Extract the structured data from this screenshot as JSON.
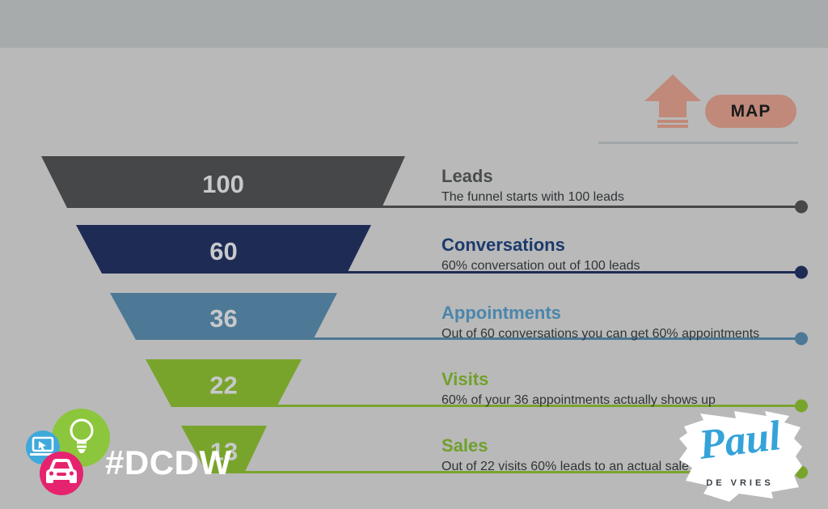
{
  "funnel": {
    "stages": [
      {
        "value": "100",
        "title": "Leads",
        "description": "The funnel starts with 100 leads",
        "color": "#454749",
        "title_color": "#4a4d4e",
        "line_color": "#454749"
      },
      {
        "value": "60",
        "title": "Conversations",
        "description": "60% conversation out of 100 leads",
        "color": "#1e2b55",
        "title_color": "#1d3a6d",
        "line_color": "#1e2b55"
      },
      {
        "value": "36",
        "title": "Appointments",
        "description": "Out of 60 conversations you can get 60% appointments",
        "color": "#4d7896",
        "title_color": "#4a86ac",
        "line_color": "#4d7896"
      },
      {
        "value": "22",
        "title": "Visits",
        "description": "60% of your 36 appointments actually shows up",
        "color": "#79a42c",
        "title_color": "#70a02b",
        "line_color": "#79a42c"
      },
      {
        "value": "13",
        "title": "Sales",
        "description": "Out of 22 visits 60% leads to an actual sale",
        "color": "#79a42c",
        "title_color": "#70a02b",
        "line_color": "#79a42c"
      }
    ],
    "number_color": "#c6c9cb",
    "description_color": "#303436"
  },
  "map_button": {
    "label": "MAP",
    "color": "#c0897a",
    "text_color": "#1a1a1a"
  },
  "arrow_icon": {
    "name": "up-arrow-icon",
    "color": "#c0897a"
  },
  "hashtag": {
    "label": "#DCDW",
    "color": "#ffffff"
  },
  "badges": {
    "lightbulb_circle_color": "#8cc63c",
    "laptop_circle_color": "#3fa9dc",
    "car_circle_color": "#e6236f",
    "icon_color": "#ffffff"
  },
  "logo": {
    "name": "Paul",
    "subtitle": "DE VRIES",
    "script_color": "#35a3d9",
    "subtitle_color": "#3a4045"
  },
  "chart_data": {
    "type": "funnel",
    "categories": [
      "Leads",
      "Conversations",
      "Appointments",
      "Visits",
      "Sales"
    ],
    "values": [
      100,
      60,
      36,
      22,
      13
    ],
    "annotations": [
      "The funnel starts with 100 leads",
      "60% conversation out of 100 leads",
      "Out of 60 conversations you can get 60% appointments",
      "60% of your 36 appointments actually shows up",
      "Out of 22 visits 60% leads to an actual sale"
    ],
    "title": "",
    "legend": "none",
    "grid": false
  }
}
